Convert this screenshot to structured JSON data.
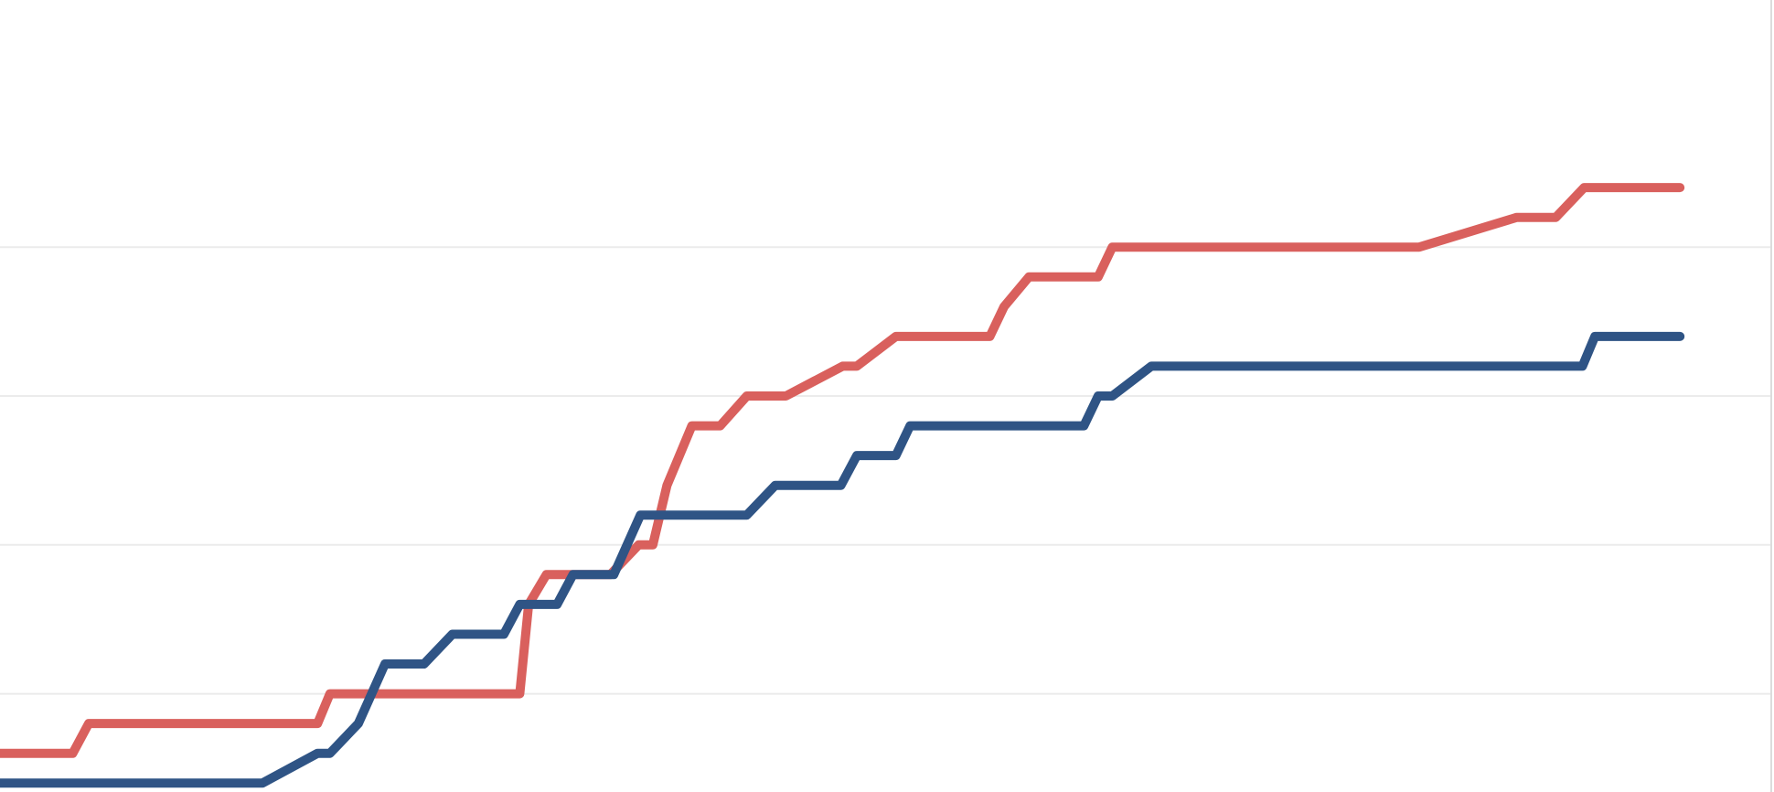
{
  "chart_data": {
    "type": "line",
    "xlim": [
      0,
      100
    ],
    "ylim": [
      1.7,
      28.3
    ],
    "yticks": [
      5,
      10,
      15,
      20
    ],
    "grid": true,
    "series": [
      {
        "color": "#d9605d",
        "x": [
          0,
          4.1,
          5.0,
          17.9,
          18.6,
          29.3,
          29.8,
          30.8,
          34.4,
          36.0,
          36.8,
          37.6,
          39.0,
          40.6,
          42.1,
          44.3,
          47.5,
          48.3,
          50.5,
          55.8,
          56.6,
          58.0,
          61.9,
          62.7,
          80.0,
          85.5,
          87.7,
          89.3,
          94.7
        ],
        "values": [
          3,
          3,
          4,
          4,
          5,
          5,
          8,
          9,
          9,
          10,
          10,
          12,
          14,
          14,
          15,
          15,
          16,
          16,
          17,
          17,
          18,
          19,
          19,
          20,
          20,
          21,
          21,
          22,
          22
        ]
      },
      {
        "color": "#2f5485",
        "x": [
          0,
          14.8,
          17.9,
          18.6,
          20.2,
          21.7,
          23.9,
          25.5,
          28.4,
          29.3,
          31.4,
          32.3,
          34.6,
          36.1,
          42.1,
          43.7,
          47.4,
          48.3,
          50.5,
          51.3,
          61.1,
          61.9,
          62.7,
          64.9,
          89.2,
          89.9,
          94.7
        ],
        "values": [
          2,
          2,
          3,
          3,
          4,
          6,
          6,
          7,
          7,
          8,
          8,
          9,
          9,
          11,
          11,
          12,
          12,
          13,
          13,
          14,
          14,
          15,
          15,
          16,
          16,
          17,
          17
        ]
      }
    ]
  }
}
